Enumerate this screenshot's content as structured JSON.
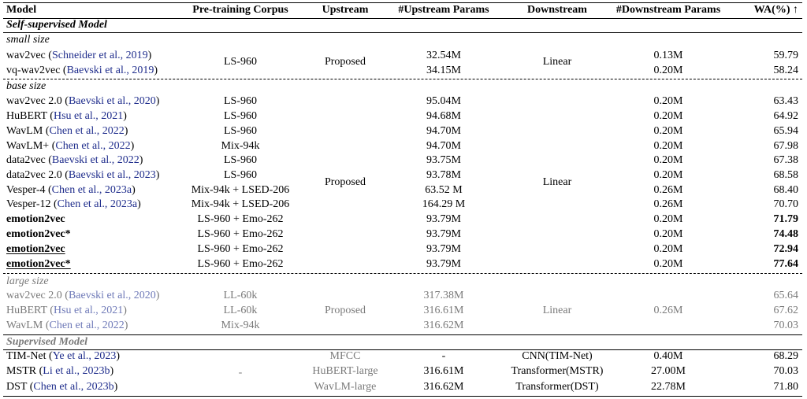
{
  "header": {
    "model": "Model",
    "corpus": "Pre-training Corpus",
    "upstream": "Upstream",
    "up_params": "#Upstream Params",
    "downstream": "Downstream",
    "down_params": "#Downstream Params",
    "wa": "WA(%) ↑"
  },
  "sections": {
    "self_supervised": "Self-supervised Model",
    "small": "small size",
    "base": "base size",
    "large": "large size",
    "supervised": "Supervised Model"
  },
  "groups": {
    "small_upstream": "Proposed",
    "small_downstream": "Linear",
    "base_upstream": "Proposed",
    "base_downstream": "Linear",
    "large_upstream": "Proposed",
    "large_downstream": "Linear",
    "large_down_params": "0.26M",
    "sup_corpus": "-"
  },
  "rows": [
    {
      "name": "wav2vec",
      "cite": "Schneider et al., 2019",
      "corpus": "",
      "upstream": "",
      "up_params": "32.54M",
      "downstream": "",
      "down_params": "0.13M",
      "wa": "59.79"
    },
    {
      "name": "vq-wav2vec",
      "cite": "Baevski et al., 2019",
      "corpus": "",
      "upstream": "",
      "up_params": "34.15M",
      "downstream": "",
      "down_params": "0.20M",
      "wa": "58.24"
    },
    {
      "name": "wav2vec 2.0",
      "cite": "Baevski et al., 2020",
      "corpus": "LS-960",
      "upstream": "",
      "up_params": "95.04M",
      "downstream": "",
      "down_params": "0.20M",
      "wa": "63.43"
    },
    {
      "name": "HuBERT",
      "cite": "Hsu et al., 2021",
      "corpus": "LS-960",
      "upstream": "",
      "up_params": "94.68M",
      "downstream": "",
      "down_params": "0.20M",
      "wa": "64.92"
    },
    {
      "name": "WavLM",
      "cite": "Chen et al., 2022",
      "corpus": "LS-960",
      "upstream": "",
      "up_params": "94.70M",
      "downstream": "",
      "down_params": "0.20M",
      "wa": "65.94"
    },
    {
      "name": "WavLM+",
      "cite": "Chen et al., 2022",
      "corpus": "Mix-94k",
      "upstream": "",
      "up_params": "94.70M",
      "downstream": "",
      "down_params": "0.20M",
      "wa": "67.98"
    },
    {
      "name": "data2vec",
      "cite": "Baevski et al., 2022",
      "corpus": "LS-960",
      "upstream": "",
      "up_params": "93.75M",
      "downstream": "",
      "down_params": "0.20M",
      "wa": "67.38"
    },
    {
      "name": "data2vec 2.0",
      "cite": "Baevski et al., 2023",
      "corpus": "LS-960",
      "upstream": "",
      "up_params": "93.78M",
      "downstream": "",
      "down_params": "0.20M",
      "wa": "68.58"
    },
    {
      "name": "Vesper-4",
      "cite": "Chen et al., 2023a",
      "corpus": "Mix-94k + LSED-206",
      "upstream": "",
      "up_params": "63.52 M",
      "downstream": "",
      "down_params": "0.26M",
      "wa": "68.40"
    },
    {
      "name": "Vesper-12",
      "cite": "Chen et al., 2023a",
      "corpus": "Mix-94k + LSED-206",
      "upstream": "",
      "up_params": "164.29 M",
      "downstream": "",
      "down_params": "0.26M",
      "wa": "70.70"
    },
    {
      "name": "emotion2vec",
      "cite": "",
      "corpus": "LS-960 + Emo-262",
      "upstream": "",
      "up_params": "93.79M",
      "downstream": "",
      "down_params": "0.20M",
      "wa": "71.79"
    },
    {
      "name": "emotion2vec*",
      "cite": "",
      "corpus": "LS-960 + Emo-262",
      "upstream": "",
      "up_params": "93.79M",
      "downstream": "",
      "down_params": "0.20M",
      "wa": "74.48"
    },
    {
      "name": "emotion2vec",
      "cite": "",
      "corpus": "LS-960 + Emo-262",
      "upstream": "",
      "up_params": "93.79M",
      "downstream": "",
      "down_params": "0.20M",
      "wa": "72.94"
    },
    {
      "name": "emotion2vec*",
      "cite": "",
      "corpus": "LS-960 + Emo-262",
      "upstream": "",
      "up_params": "93.79M",
      "downstream": "",
      "down_params": "0.20M",
      "wa": "77.64"
    },
    {
      "name": "wav2vec 2.0",
      "cite": "Baevski et al., 2020",
      "corpus": "LL-60k",
      "upstream": "",
      "up_params": "317.38M",
      "downstream": "",
      "down_params": "",
      "wa": "65.64"
    },
    {
      "name": "HuBERT",
      "cite": "Hsu et al., 2021",
      "corpus": "LL-60k",
      "upstream": "",
      "up_params": "316.61M",
      "downstream": "",
      "down_params": "",
      "wa": "67.62"
    },
    {
      "name": "WavLM",
      "cite": "Chen et al., 2022",
      "corpus": "Mix-94k",
      "upstream": "",
      "up_params": "316.62M",
      "downstream": "",
      "down_params": "",
      "wa": "70.03"
    },
    {
      "name": "TIM-Net",
      "cite": "Ye et al., 2023",
      "corpus": "",
      "upstream": "MFCC",
      "up_params": "-",
      "downstream": "CNN(TIM-Net)",
      "down_params": "0.40M",
      "wa": "68.29"
    },
    {
      "name": "MSTR",
      "cite": "Li et al., 2023b",
      "corpus": "",
      "upstream": "HuBERT-large",
      "up_params": "316.61M",
      "downstream": "Transformer(MSTR)",
      "down_params": "27.00M",
      "wa": "70.03"
    },
    {
      "name": "DST",
      "cite": "Chen et al., 2023b",
      "corpus": "",
      "upstream": "WavLM-large",
      "up_params": "316.62M",
      "downstream": "Transformer(DST)",
      "down_params": "22.78M",
      "wa": "71.80"
    }
  ]
}
